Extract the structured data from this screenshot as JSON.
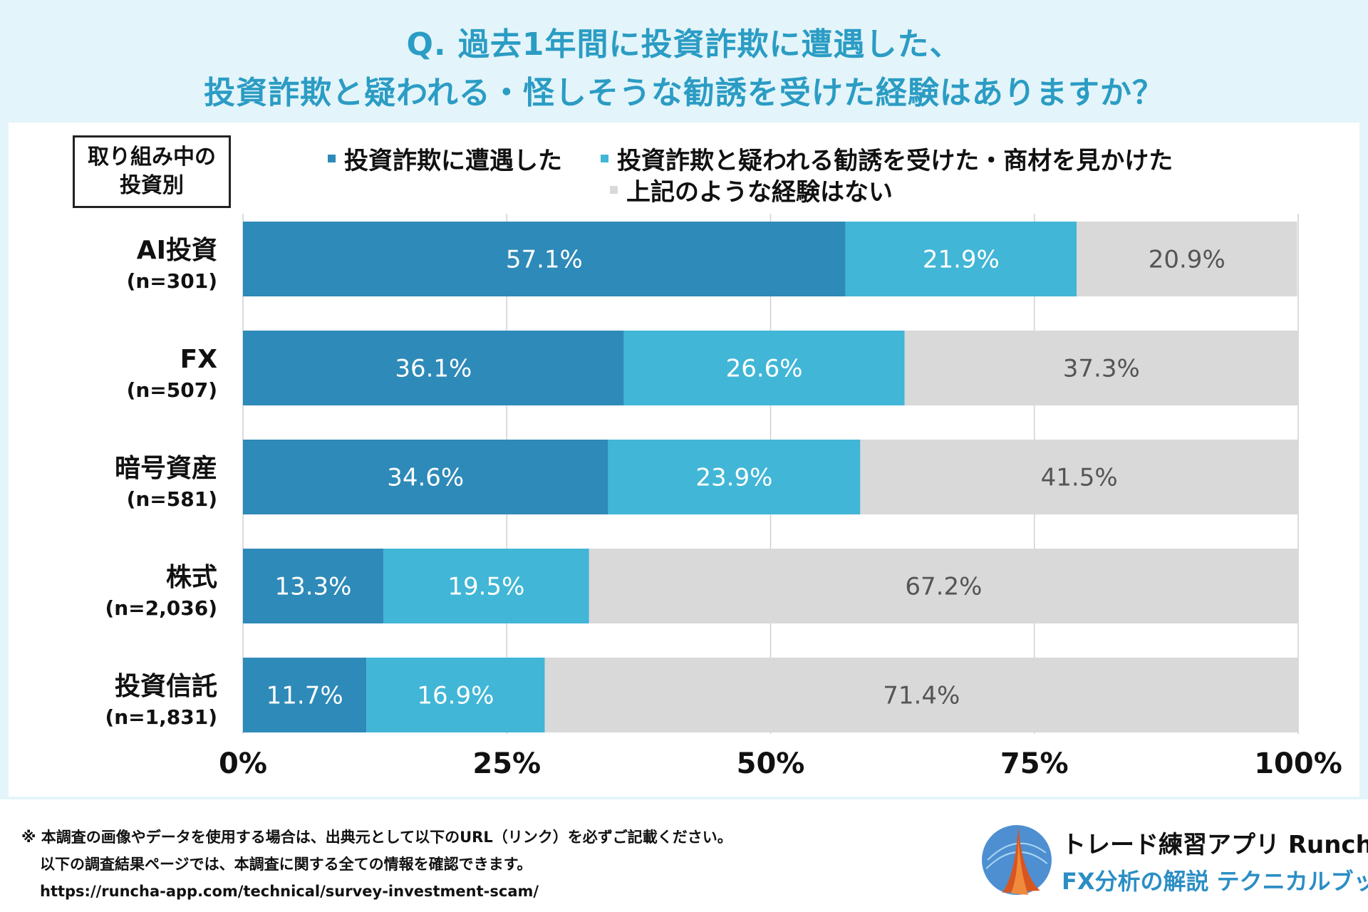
{
  "title": {
    "line1": "Q. 過去1年間に投資詐欺に遭遇した、",
    "line2": "投資詐欺と疑われる・怪しそうな勧誘を受けた経験はありますか？"
  },
  "category_box": {
    "line1": "取り組み中の",
    "line2": "投資別"
  },
  "colors": {
    "encountered": "#2e8ab8",
    "solicited": "#41b6d6",
    "none": "#d9d9d9",
    "title": "#2b9cc4",
    "header_bg": "#e3f5fa"
  },
  "chart_data": {
    "type": "bar",
    "orientation": "horizontal",
    "stacked": true,
    "unit": "%",
    "categories": [
      "AI投資",
      "FX",
      "暗号資産",
      "株式",
      "投資信託"
    ],
    "sample_sizes": [
      "(n=301)",
      "(n=507)",
      "(n=581)",
      "(n=2,036)",
      "(n=1,831)"
    ],
    "series": [
      {
        "name": "投資詐欺に遭遇した",
        "values": [
          57.1,
          36.1,
          34.6,
          13.3,
          11.7
        ]
      },
      {
        "name": "投資詐欺と疑われる勧誘を受けた・商材を見かけた",
        "values": [
          21.9,
          26.6,
          23.9,
          19.5,
          16.9
        ]
      },
      {
        "name": "上記のような経験はない",
        "values": [
          20.9,
          37.3,
          41.5,
          67.2,
          71.4
        ]
      }
    ],
    "xlim": [
      0,
      100
    ],
    "xticks": [
      "0%",
      "25%",
      "50%",
      "75%",
      "100%"
    ],
    "grid": true,
    "legend": "top"
  },
  "footer": {
    "note1": "※ 本調査の画像やデータを使用する場合は、出典元として以下のURL（リンク）を必ずご記載ください。",
    "note2": "以下の調査結果ページでは、本調査に関する全ての情報を確認できます。",
    "url": "https://runcha-app.com/technical/survey-investment-scam/"
  },
  "brand": {
    "name": "トレード練習アプリ  Runcha",
    "subtitle": "FX分析の解説  テクニカルブック",
    "logo_icon": "runcha-logo-icon"
  }
}
